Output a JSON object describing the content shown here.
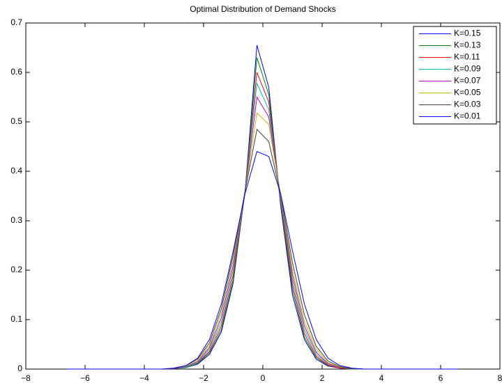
{
  "chart_data": {
    "type": "line",
    "title": "Optimal Distribution of Demand Shocks",
    "x": [
      -6.6,
      -5,
      -3.4,
      -3,
      -2.6,
      -2.2,
      -1.8,
      -1.4,
      -1,
      -0.6,
      -0.2,
      0.2,
      0.6,
      1,
      1.4,
      1.8,
      2.2,
      2.6,
      3,
      3.4,
      5,
      6.6
    ],
    "series": [
      {
        "name": "K=0.15",
        "color": "#0000ff",
        "values": [
          0,
          0,
          0,
          0.001,
          0.003,
          0.01,
          0.03,
          0.075,
          0.175,
          0.36,
          0.655,
          0.57,
          0.33,
          0.15,
          0.06,
          0.02,
          0.006,
          0.002,
          0,
          0,
          0,
          0
        ]
      },
      {
        "name": "K=0.13",
        "color": "#008000",
        "values": [
          0,
          0,
          0,
          0.001,
          0.003,
          0.011,
          0.033,
          0.08,
          0.18,
          0.36,
          0.63,
          0.555,
          0.335,
          0.16,
          0.065,
          0.023,
          0.007,
          0.002,
          0,
          0,
          0,
          0
        ]
      },
      {
        "name": "K=0.11",
        "color": "#ff0000",
        "values": [
          0,
          0,
          0,
          0.001,
          0.004,
          0.012,
          0.036,
          0.087,
          0.19,
          0.36,
          0.6,
          0.54,
          0.34,
          0.17,
          0.072,
          0.026,
          0.008,
          0.002,
          0.001,
          0,
          0,
          0
        ]
      },
      {
        "name": "K=0.09",
        "color": "#00bfbf",
        "values": [
          0,
          0,
          0,
          0.001,
          0.004,
          0.013,
          0.04,
          0.095,
          0.2,
          0.36,
          0.578,
          0.525,
          0.345,
          0.18,
          0.08,
          0.03,
          0.01,
          0.003,
          0.001,
          0,
          0,
          0
        ]
      },
      {
        "name": "K=0.07",
        "color": "#bf00bf",
        "values": [
          0,
          0,
          0,
          0.001,
          0.005,
          0.015,
          0.044,
          0.104,
          0.21,
          0.36,
          0.55,
          0.51,
          0.35,
          0.19,
          0.088,
          0.034,
          0.011,
          0.003,
          0.001,
          0,
          0,
          0
        ]
      },
      {
        "name": "K=0.05",
        "color": "#bfbf00",
        "values": [
          0,
          0,
          0,
          0.002,
          0.006,
          0.017,
          0.048,
          0.113,
          0.22,
          0.36,
          0.518,
          0.495,
          0.352,
          0.2,
          0.097,
          0.04,
          0.013,
          0.004,
          0.001,
          0,
          0,
          0
        ]
      },
      {
        "name": "K=0.03",
        "color": "#404040",
        "values": [
          0,
          0,
          0,
          0.002,
          0.007,
          0.02,
          0.053,
          0.122,
          0.23,
          0.36,
          0.485,
          0.46,
          0.354,
          0.215,
          0.11,
          0.046,
          0.016,
          0.005,
          0.001,
          0,
          0,
          0
        ]
      },
      {
        "name": "K=0.01",
        "color": "#0000ff",
        "values": [
          0,
          0,
          0,
          0.002,
          0.007,
          0.022,
          0.06,
          0.132,
          0.239,
          0.355,
          0.44,
          0.43,
          0.355,
          0.239,
          0.132,
          0.06,
          0.022,
          0.007,
          0.002,
          0,
          0,
          0
        ]
      }
    ],
    "xlim": [
      -8,
      8
    ],
    "xticks": [
      {
        "value": -8,
        "label": "−8"
      },
      {
        "value": -6,
        "label": "−6"
      },
      {
        "value": -4,
        "label": "−4"
      },
      {
        "value": -2,
        "label": "−2"
      },
      0,
      2,
      4,
      6,
      8
    ],
    "ylim": [
      0,
      0.7
    ],
    "yticks": [
      0,
      0.1,
      0.2,
      0.3,
      0.4,
      0.5,
      0.6,
      0.7
    ],
    "legend": "top-right",
    "grid": false
  }
}
